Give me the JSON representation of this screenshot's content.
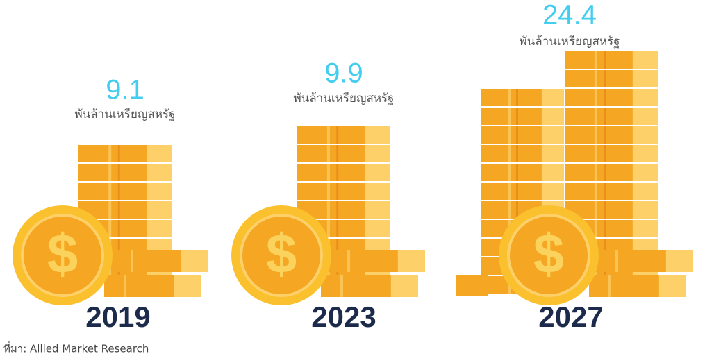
{
  "chart_data": {
    "type": "pictorial",
    "categories": [
      "2019",
      "2023",
      "2027"
    ],
    "values": [
      9.1,
      9.9,
      24.4
    ],
    "unit": "พันล้านเหรียญสหรัฐ",
    "source": "ที่มา: Allied Market Research",
    "color": "#f5a623"
  }
}
